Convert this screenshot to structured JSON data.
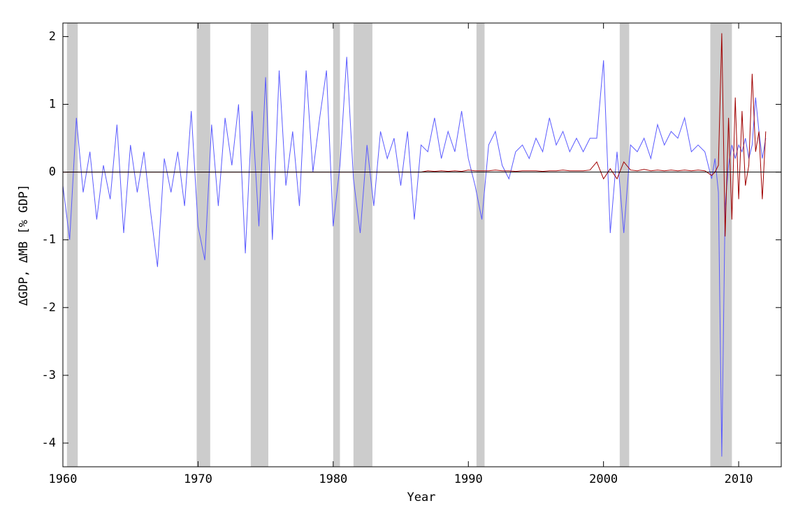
{
  "chart_data": {
    "type": "line",
    "x_label": "Year",
    "y_label": "∆GDP, ∆MB [% GDP]",
    "xlim": [
      1960,
      2013.15
    ],
    "ylim": [
      -4.35,
      2.2
    ],
    "xticks": [
      1960,
      1970,
      1980,
      1990,
      2000,
      2010
    ],
    "yticks": [
      -4,
      -3,
      -2,
      -1,
      0,
      1,
      2
    ],
    "recession_color": "#cccccc",
    "recessions": [
      [
        1960.3,
        1961.1
      ],
      [
        1969.9,
        1970.9
      ],
      [
        1973.9,
        1975.2
      ],
      [
        1980.0,
        1980.5
      ],
      [
        1981.5,
        1982.9
      ],
      [
        1990.6,
        1991.2
      ],
      [
        2001.2,
        2001.9
      ],
      [
        2007.9,
        2009.5
      ]
    ],
    "x": [
      1960.0,
      1960.5,
      1961.0,
      1961.5,
      1962.0,
      1962.5,
      1963.0,
      1963.5,
      1964.0,
      1964.5,
      1965.0,
      1965.5,
      1966.0,
      1966.5,
      1967.0,
      1967.5,
      1968.0,
      1968.5,
      1969.0,
      1969.5,
      1970.0,
      1970.5,
      1971.0,
      1971.5,
      1972.0,
      1972.5,
      1973.0,
      1973.5,
      1974.0,
      1974.5,
      1975.0,
      1975.5,
      1976.0,
      1976.5,
      1977.0,
      1977.5,
      1978.0,
      1978.5,
      1979.0,
      1979.5,
      1980.0,
      1980.5,
      1981.0,
      1981.5,
      1982.0,
      1982.5,
      1983.0,
      1983.5,
      1984.0,
      1984.5,
      1985.0,
      1985.5,
      1986.0,
      1986.5,
      1987.0,
      1987.5,
      1988.0,
      1988.5,
      1989.0,
      1989.5,
      1990.0,
      1990.5,
      1991.0,
      1991.5,
      1992.0,
      1992.5,
      1993.0,
      1993.5,
      1994.0,
      1994.5,
      1995.0,
      1995.5,
      1996.0,
      1996.5,
      1997.0,
      1997.5,
      1998.0,
      1998.5,
      1999.0,
      1999.5,
      2000.0,
      2000.5,
      2001.0,
      2001.5,
      2002.0,
      2002.5,
      2003.0,
      2003.5,
      2004.0,
      2004.5,
      2005.0,
      2005.5,
      2006.0,
      2006.5,
      2007.0,
      2007.5,
      2008.0,
      2008.25,
      2008.5,
      2008.75,
      2009.0,
      2009.25,
      2009.5,
      2009.75,
      2010.0,
      2010.25,
      2010.5,
      2010.75,
      2011.0,
      2011.25,
      2011.5,
      2011.75,
      2012.0
    ],
    "series": [
      {
        "name": "∆GDP",
        "color": "#5a5aff",
        "values": [
          -0.2,
          -1.0,
          0.8,
          -0.3,
          0.3,
          -0.7,
          0.1,
          -0.4,
          0.7,
          -0.9,
          0.4,
          -0.3,
          0.3,
          -0.6,
          -1.4,
          0.2,
          -0.3,
          0.3,
          -0.5,
          0.9,
          -0.8,
          -1.3,
          0.7,
          -0.5,
          0.8,
          0.1,
          1.0,
          -1.2,
          0.9,
          -0.8,
          1.4,
          -1.0,
          1.5,
          -0.2,
          0.6,
          -0.5,
          1.5,
          0.0,
          0.8,
          1.5,
          -0.8,
          0.1,
          1.7,
          -0.1,
          -0.9,
          0.4,
          -0.5,
          0.6,
          0.2,
          0.5,
          -0.2,
          0.6,
          -0.7,
          0.4,
          0.3,
          0.8,
          0.2,
          0.6,
          0.3,
          0.9,
          0.2,
          -0.2,
          -0.7,
          0.4,
          0.6,
          0.1,
          -0.1,
          0.3,
          0.4,
          0.2,
          0.5,
          0.3,
          0.8,
          0.4,
          0.6,
          0.3,
          0.5,
          0.3,
          0.5,
          0.5,
          1.65,
          -0.9,
          0.3,
          -0.9,
          0.4,
          0.3,
          0.5,
          0.2,
          0.7,
          0.4,
          0.6,
          0.5,
          0.8,
          0.3,
          0.4,
          0.3,
          -0.1,
          0.2,
          -0.3,
          -4.2,
          -0.5,
          0.1,
          0.4,
          0.2,
          0.4,
          0.3,
          0.5,
          0.2,
          0.4,
          1.1,
          0.6,
          0.2,
          0.5
        ]
      },
      {
        "name": "∆MB",
        "color": "#a00000",
        "values": [
          0.0,
          0.0,
          0.0,
          0.0,
          0.0,
          0.0,
          0.0,
          0.0,
          0.0,
          0.0,
          0.0,
          0.0,
          0.0,
          0.0,
          0.0,
          0.0,
          0.0,
          0.0,
          0.0,
          0.0,
          0.0,
          0.0,
          0.0,
          0.0,
          0.0,
          0.0,
          0.0,
          0.0,
          0.0,
          0.0,
          0.0,
          0.0,
          0.0,
          0.0,
          0.0,
          0.0,
          0.0,
          0.0,
          0.0,
          0.0,
          0.0,
          0.0,
          0.0,
          0.0,
          0.0,
          0.0,
          0.0,
          0.0,
          0.0,
          0.0,
          0.0,
          0.0,
          0.0,
          0.0,
          0.02,
          0.01,
          0.02,
          0.01,
          0.02,
          0.01,
          0.03,
          0.02,
          0.02,
          0.02,
          0.03,
          0.02,
          0.02,
          0.01,
          0.02,
          0.02,
          0.02,
          0.01,
          0.02,
          0.02,
          0.03,
          0.02,
          0.02,
          0.02,
          0.03,
          0.15,
          -0.1,
          0.05,
          -0.1,
          0.15,
          0.03,
          0.02,
          0.04,
          0.02,
          0.03,
          0.02,
          0.03,
          0.02,
          0.03,
          0.02,
          0.03,
          0.02,
          -0.05,
          0.0,
          0.1,
          2.05,
          -0.95,
          0.8,
          -0.7,
          1.1,
          -0.4,
          0.9,
          -0.2,
          0.1,
          1.45,
          0.3,
          0.6,
          -0.4,
          0.6
        ]
      }
    ]
  }
}
